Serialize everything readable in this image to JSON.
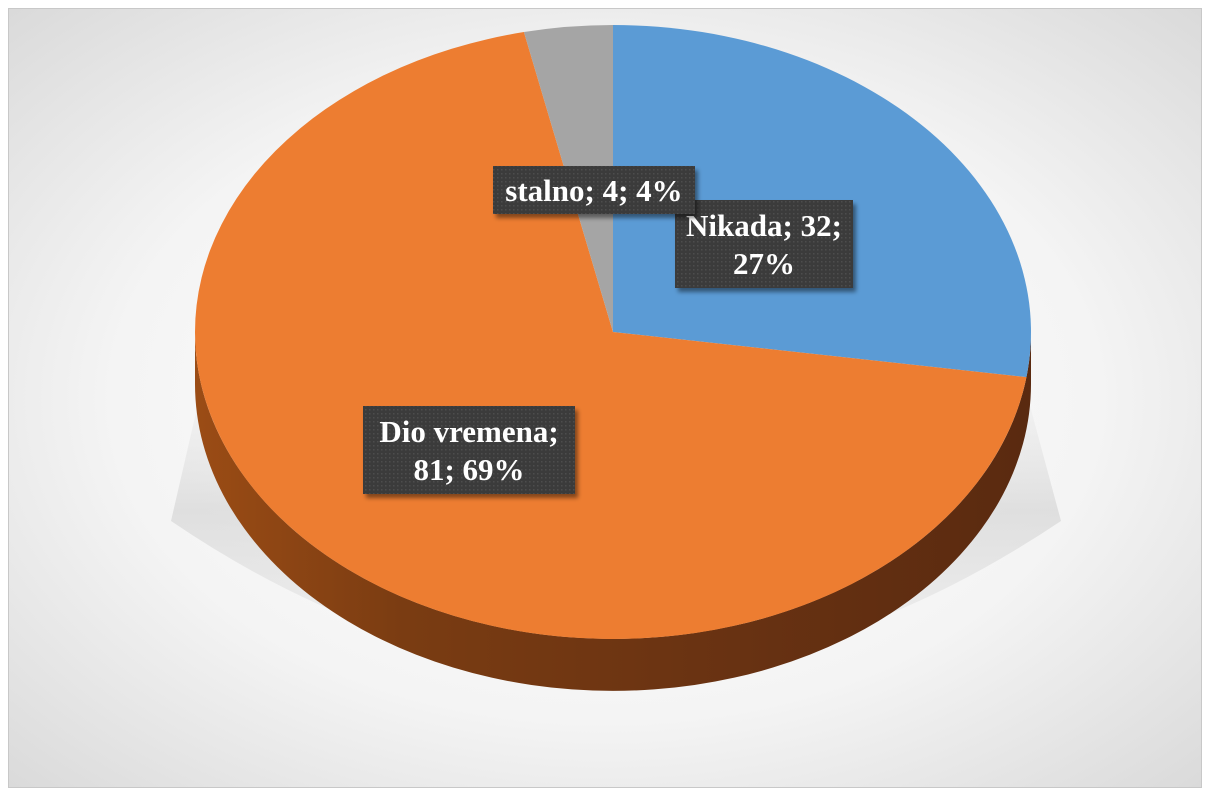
{
  "chart_data": {
    "type": "pie",
    "style": "3d",
    "slices": [
      {
        "name": "Nikada",
        "value": 32,
        "percent": 27,
        "color": "#5B9BD5",
        "label": {
          "lines": [
            "Nikada; 32;",
            "27%"
          ]
        }
      },
      {
        "name": "Dio vremena",
        "value": 81,
        "percent": 69,
        "color": "#ED7D31",
        "label": {
          "lines": [
            "Dio vremena;",
            "81; 69%"
          ]
        }
      },
      {
        "name": "stalno",
        "value": 4,
        "percent": 4,
        "color": "#A5A5A5",
        "label": {
          "lines": [
            "stalno; 4; 4%"
          ]
        }
      }
    ],
    "start_angle_deg": 90,
    "direction": "clockwise",
    "legend": "none",
    "data_label_style": "dark-box"
  }
}
